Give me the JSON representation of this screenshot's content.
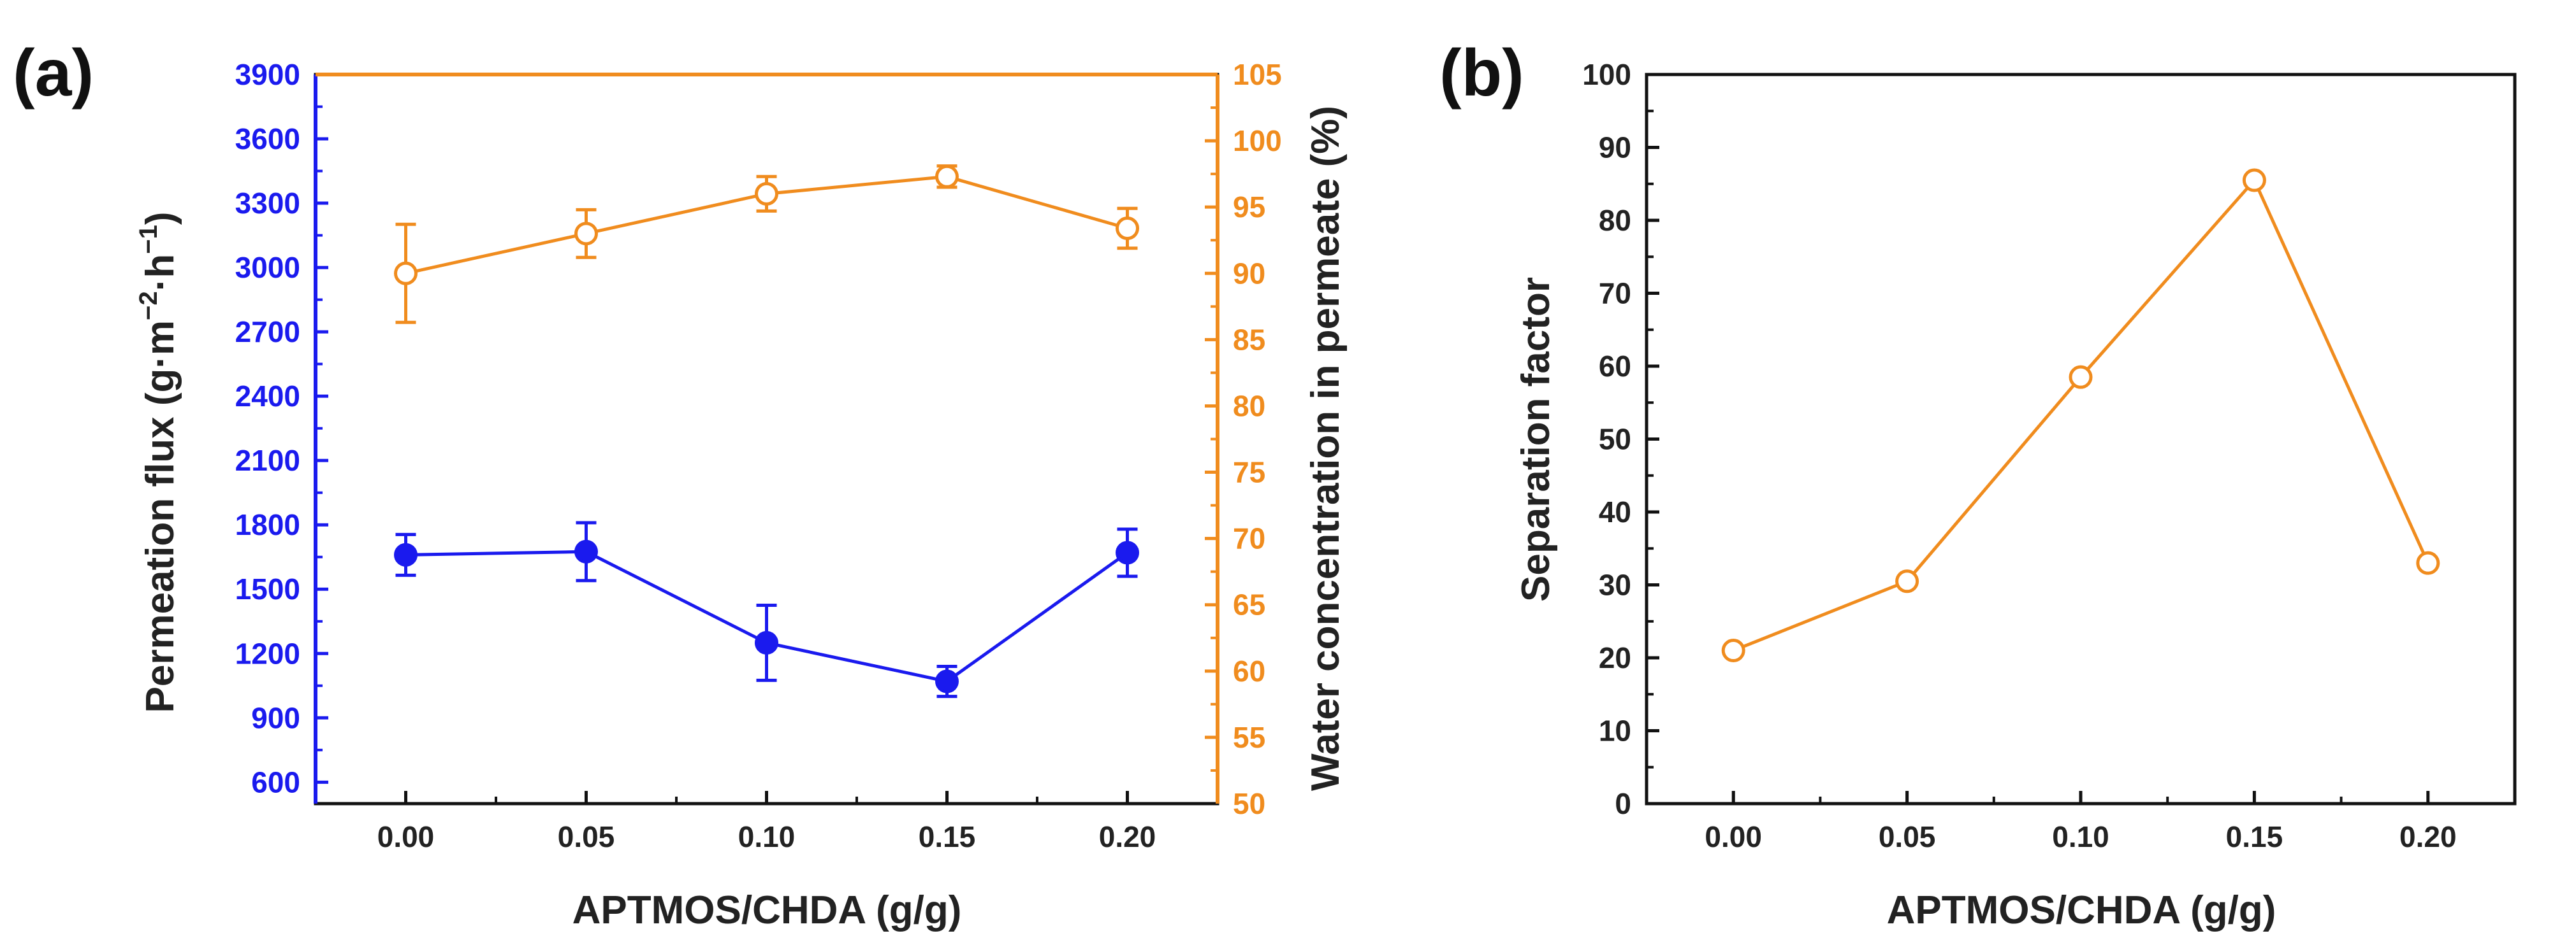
{
  "colors": {
    "left_series": "#1a1aee",
    "right_series": "#f08c1e",
    "axis_black": "#111111",
    "marker_fill": "#ffffff"
  },
  "chart_data": [
    {
      "panel": "(a)",
      "type": "line",
      "x": [
        0.0,
        0.05,
        0.1,
        0.15,
        0.2
      ],
      "x_tick_labels": [
        "0.00",
        "0.05",
        "0.10",
        "0.15",
        "0.20"
      ],
      "xlabel": "APTMOS/CHDA (g/g)",
      "xlim": [
        -0.025,
        0.225
      ],
      "grid": false,
      "y_left": {
        "label_main": "Permeation flux (g·m",
        "label_sup1": "−2",
        "label_mid": "·h",
        "label_sup2": "−1",
        "label_end": ")",
        "lim": [
          500,
          3900
        ],
        "ticks": [
          "600",
          "900",
          "1200",
          "1500",
          "1800",
          "2100",
          "2400",
          "2700",
          "3000",
          "3300",
          "3600",
          "3900"
        ]
      },
      "y_right": {
        "label": "Water concentration in permeate (%)",
        "lim": [
          50,
          105
        ],
        "ticks": [
          "50",
          "55",
          "60",
          "65",
          "70",
          "75",
          "80",
          "85",
          "90",
          "95",
          "100",
          "105"
        ]
      },
      "series": [
        {
          "name": "Permeation flux",
          "axis": "left",
          "marker": "filled-circle",
          "color": "#1a1aee",
          "values": [
            1660,
            1675,
            1250,
            1070,
            1670
          ],
          "errors": [
            95,
            135,
            175,
            70,
            110
          ]
        },
        {
          "name": "Water concentration in permeate",
          "axis": "right",
          "marker": "open-circle",
          "color": "#f08c1e",
          "values": [
            90.0,
            93.0,
            96.0,
            97.3,
            93.4
          ],
          "errors": [
            3.7,
            1.8,
            1.3,
            0.8,
            1.5
          ]
        }
      ]
    },
    {
      "panel": "(b)",
      "type": "line",
      "x": [
        0.0,
        0.05,
        0.1,
        0.15,
        0.2
      ],
      "x_tick_labels": [
        "0.00",
        "0.05",
        "0.10",
        "0.15",
        "0.20"
      ],
      "xlabel": "APTMOS/CHDA (g/g)",
      "xlim": [
        -0.025,
        0.225
      ],
      "grid": false,
      "ylabel": "Separation factor",
      "ylim": [
        0,
        100
      ],
      "y_ticks": [
        "0",
        "10",
        "20",
        "30",
        "40",
        "50",
        "60",
        "70",
        "80",
        "90",
        "100"
      ],
      "series": [
        {
          "name": "Separation factor",
          "marker": "open-circle",
          "color": "#f08c1e",
          "values": [
            21,
            30.5,
            58.5,
            85.5,
            33
          ]
        }
      ]
    }
  ]
}
